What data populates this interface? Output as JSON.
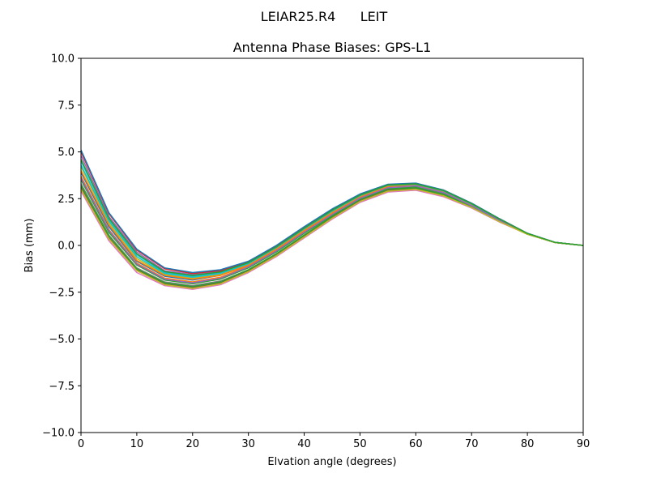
{
  "chart_data": {
    "type": "line",
    "suptitle": "LEIAR25.R4      LEIT",
    "title": "Antenna Phase Biases: GPS-L1",
    "xlabel": "Elvation angle (degrees)",
    "ylabel": "Bias (mm)",
    "xlim": [
      0,
      90
    ],
    "ylim": [
      -10,
      10
    ],
    "x_ticks": [
      0,
      10,
      20,
      30,
      40,
      50,
      60,
      70,
      80,
      90
    ],
    "x_tick_labels": [
      "0",
      "10",
      "20",
      "30",
      "40",
      "50",
      "60",
      "70",
      "80",
      "90"
    ],
    "y_ticks": [
      -10,
      -7.5,
      -5,
      -2.5,
      0,
      2.5,
      5,
      7.5,
      10
    ],
    "y_tick_labels": [
      "−10.0",
      "−7.5",
      "−5.0",
      "−2.5",
      "0.0",
      "2.5",
      "5.0",
      "7.5",
      "10.0"
    ],
    "grid": false,
    "legend": "none",
    "x": [
      0,
      5,
      10,
      15,
      20,
      25,
      30,
      35,
      40,
      45,
      50,
      55,
      60,
      65,
      70,
      75,
      80,
      85,
      90
    ],
    "series": [
      {
        "color": "#e377c2",
        "values": [
          2.9,
          0.25,
          -1.45,
          -2.15,
          -2.35,
          -2.1,
          -1.45,
          -0.6,
          0.4,
          1.4,
          2.3,
          2.85,
          2.95,
          2.6,
          2.0,
          1.25,
          0.6,
          0.15,
          0.0
        ]
      },
      {
        "color": "#8c564b",
        "values": [
          3.1,
          0.4,
          -1.3,
          -2.05,
          -2.25,
          -2.0,
          -1.35,
          -0.5,
          0.5,
          1.5,
          2.4,
          2.95,
          3.05,
          2.7,
          2.05,
          1.3,
          0.6,
          0.15,
          0.0
        ]
      },
      {
        "color": "#7f7f7f",
        "values": [
          3.3,
          0.55,
          -1.2,
          -1.95,
          -2.15,
          -1.9,
          -1.3,
          -0.45,
          0.55,
          1.55,
          2.45,
          3.0,
          3.1,
          2.75,
          2.1,
          1.3,
          0.6,
          0.15,
          0.0
        ]
      },
      {
        "color": "#2ca02c",
        "values": [
          3.5,
          0.7,
          -1.05,
          -1.85,
          -2.05,
          -1.8,
          -1.2,
          -0.35,
          0.65,
          1.6,
          2.5,
          3.05,
          3.15,
          2.8,
          2.1,
          1.35,
          0.62,
          0.15,
          0.0
        ]
      },
      {
        "color": "#ff7f0e",
        "values": [
          3.7,
          0.85,
          -0.95,
          -1.75,
          -1.95,
          -1.7,
          -1.1,
          -0.25,
          0.75,
          1.7,
          2.55,
          3.1,
          3.2,
          2.85,
          2.15,
          1.35,
          0.62,
          0.15,
          0.0
        ]
      },
      {
        "color": "#1f77b4",
        "values": [
          3.9,
          1.0,
          -0.85,
          -1.65,
          -1.85,
          -1.6,
          -1.05,
          -0.2,
          0.8,
          1.75,
          2.6,
          3.15,
          3.22,
          2.87,
          2.17,
          1.37,
          0.63,
          0.15,
          0.0
        ]
      },
      {
        "color": "#bcbd22",
        "values": [
          4.2,
          1.2,
          -0.7,
          -1.55,
          -1.75,
          -1.55,
          -1.0,
          -0.15,
          0.85,
          1.8,
          2.65,
          3.2,
          3.25,
          2.9,
          2.2,
          1.38,
          0.63,
          0.16,
          0.0
        ]
      },
      {
        "color": "#17becf",
        "values": [
          4.5,
          1.4,
          -0.5,
          -1.45,
          -1.65,
          -1.45,
          -0.95,
          -0.1,
          0.9,
          1.85,
          2.68,
          3.22,
          3.28,
          2.92,
          2.22,
          1.4,
          0.64,
          0.16,
          0.0
        ]
      },
      {
        "color": "#9467bd",
        "values": [
          4.8,
          1.55,
          -0.35,
          -1.35,
          -1.55,
          -1.4,
          -0.9,
          -0.05,
          0.95,
          1.9,
          2.7,
          3.24,
          3.3,
          2.93,
          2.23,
          1.41,
          0.64,
          0.16,
          0.0
        ]
      },
      {
        "color": "#d62728",
        "values": [
          5.0,
          1.7,
          -0.25,
          -1.25,
          -1.5,
          -1.35,
          -0.85,
          -0.05,
          0.95,
          1.92,
          2.72,
          3.25,
          3.32,
          2.95,
          2.25,
          1.42,
          0.65,
          0.16,
          0.0
        ]
      },
      {
        "color": "#1f77b4",
        "values": [
          5.1,
          1.75,
          -0.2,
          -1.2,
          -1.45,
          -1.3,
          -0.85,
          0.0,
          1.0,
          1.95,
          2.75,
          3.27,
          3.33,
          2.96,
          2.26,
          1.43,
          0.65,
          0.16,
          0.0
        ]
      },
      {
        "color": "#2ca02c",
        "values": [
          3.2,
          0.5,
          -1.25,
          -2.0,
          -2.2,
          -1.95,
          -1.3,
          -0.45,
          0.55,
          1.55,
          2.45,
          3.0,
          3.08,
          2.72,
          2.08,
          1.3,
          0.6,
          0.15,
          0.0
        ]
      },
      {
        "color": "#ff7f0e",
        "values": [
          4.0,
          1.1,
          -0.8,
          -1.6,
          -1.8,
          -1.6,
          -1.05,
          -0.2,
          0.8,
          1.75,
          2.6,
          3.15,
          3.23,
          2.88,
          2.18,
          1.37,
          0.63,
          0.15,
          0.0
        ]
      },
      {
        "color": "#17becf",
        "values": [
          4.3,
          1.3,
          -0.6,
          -1.5,
          -1.7,
          -1.5,
          -0.98,
          -0.12,
          0.88,
          1.83,
          2.66,
          3.21,
          3.27,
          2.91,
          2.21,
          1.39,
          0.64,
          0.16,
          0.0
        ]
      },
      {
        "color": "#9467bd",
        "values": [
          3.6,
          0.8,
          -1.0,
          -1.8,
          -2.0,
          -1.75,
          -1.15,
          -0.3,
          0.7,
          1.65,
          2.52,
          3.08,
          3.18,
          2.82,
          2.12,
          1.34,
          0.62,
          0.15,
          0.0
        ]
      },
      {
        "color": "#bcbd22",
        "values": [
          3.0,
          0.35,
          -1.35,
          -2.1,
          -2.3,
          -2.05,
          -1.4,
          -0.55,
          0.45,
          1.45,
          2.35,
          2.9,
          3.0,
          2.65,
          2.03,
          1.27,
          0.6,
          0.15,
          0.0
        ]
      },
      {
        "color": "#2ca02c",
        "values": [
          4.6,
          1.45,
          -0.45,
          -1.4,
          -1.6,
          -1.42,
          -0.92,
          -0.08,
          0.92,
          1.88,
          2.69,
          3.23,
          3.29,
          2.93,
          2.23,
          1.41,
          0.64,
          0.16,
          0.0
        ]
      }
    ]
  }
}
